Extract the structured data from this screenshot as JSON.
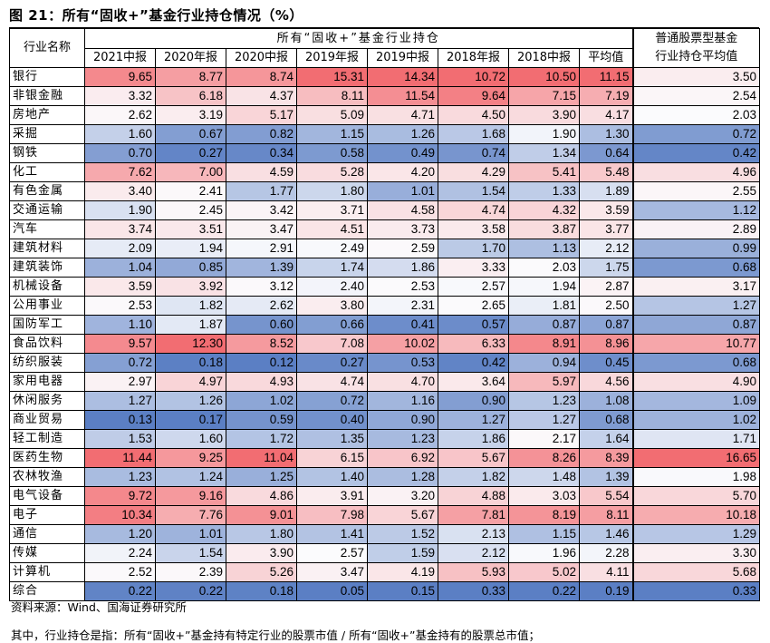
{
  "title": "图 21：所有“固收+”基金行业持仓情况（%）",
  "table": {
    "corner_header": "行业名称",
    "group_header": "所有“固收+”基金行业持仓",
    "right_header_line1": "普通股票型基金",
    "right_header_line2": "行业持仓平均值",
    "periods": [
      "2021中报",
      "2020年报",
      "2020中报",
      "2019年报",
      "2019中报",
      "2018年报",
      "2018中报",
      "平均值"
    ],
    "rows": [
      {
        "name": "银行",
        "values": [
          "9.65",
          "8.77",
          "8.74",
          "15.31",
          "14.34",
          "10.72",
          "10.50",
          "11.15"
        ],
        "stock": "3.50"
      },
      {
        "name": "非银金融",
        "values": [
          "3.32",
          "6.18",
          "4.37",
          "8.11",
          "11.54",
          "9.64",
          "7.15",
          "7.19"
        ],
        "stock": "2.54"
      },
      {
        "name": "房地产",
        "values": [
          "2.62",
          "3.19",
          "5.17",
          "5.09",
          "4.71",
          "4.50",
          "3.90",
          "4.17"
        ],
        "stock": "2.03"
      },
      {
        "name": "采掘",
        "values": [
          "1.60",
          "0.67",
          "0.82",
          "1.15",
          "1.26",
          "1.68",
          "1.90",
          "1.30"
        ],
        "stock": "0.72"
      },
      {
        "name": "钢铁",
        "values": [
          "0.70",
          "0.27",
          "0.34",
          "0.58",
          "0.49",
          "0.74",
          "1.34",
          "0.64"
        ],
        "stock": "0.42"
      },
      {
        "name": "化工",
        "values": [
          "7.62",
          "7.00",
          "4.59",
          "5.28",
          "4.20",
          "4.29",
          "5.41",
          "5.48"
        ],
        "stock": "4.96"
      },
      {
        "name": "有色金属",
        "values": [
          "3.40",
          "2.41",
          "1.77",
          "1.80",
          "1.01",
          "1.54",
          "1.33",
          "1.89"
        ],
        "stock": "2.55"
      },
      {
        "name": "交通运输",
        "values": [
          "1.90",
          "2.45",
          "3.42",
          "3.71",
          "4.58",
          "4.74",
          "4.32",
          "3.59"
        ],
        "stock": "1.12"
      },
      {
        "name": "汽车",
        "values": [
          "3.74",
          "3.51",
          "3.47",
          "4.51",
          "3.73",
          "3.58",
          "3.87",
          "3.77"
        ],
        "stock": "2.89"
      },
      {
        "name": "建筑材料",
        "values": [
          "2.09",
          "1.94",
          "2.91",
          "2.49",
          "2.59",
          "1.70",
          "1.13",
          "2.12"
        ],
        "stock": "0.99"
      },
      {
        "name": "建筑装饰",
        "values": [
          "1.04",
          "0.85",
          "1.39",
          "1.74",
          "1.86",
          "3.33",
          "2.03",
          "1.75"
        ],
        "stock": "0.68"
      },
      {
        "name": "机械设备",
        "values": [
          "3.59",
          "3.92",
          "3.12",
          "2.40",
          "2.53",
          "2.57",
          "1.94",
          "2.87"
        ],
        "stock": "3.17"
      },
      {
        "name": "公用事业",
        "values": [
          "2.53",
          "1.82",
          "2.62",
          "3.80",
          "2.31",
          "2.65",
          "1.81",
          "2.50"
        ],
        "stock": "1.27"
      },
      {
        "name": "国防军工",
        "values": [
          "1.10",
          "1.87",
          "0.60",
          "0.66",
          "0.41",
          "0.57",
          "0.87",
          "0.87"
        ],
        "stock": "0.87"
      },
      {
        "name": "食品饮料",
        "values": [
          "9.57",
          "12.30",
          "8.52",
          "7.08",
          "10.02",
          "6.33",
          "8.91",
          "8.96"
        ],
        "stock": "10.77"
      },
      {
        "name": "纺织服装",
        "values": [
          "0.72",
          "0.18",
          "0.12",
          "0.27",
          "0.53",
          "0.42",
          "0.94",
          "0.45"
        ],
        "stock": "0.68"
      },
      {
        "name": "家用电器",
        "values": [
          "2.97",
          "4.97",
          "4.93",
          "4.74",
          "4.70",
          "3.64",
          "5.97",
          "4.56"
        ],
        "stock": "4.90"
      },
      {
        "name": "休闲服务",
        "values": [
          "1.27",
          "1.26",
          "1.02",
          "0.72",
          "1.16",
          "0.90",
          "1.23",
          "1.08"
        ],
        "stock": "1.09"
      },
      {
        "name": "商业贸易",
        "values": [
          "0.13",
          "0.17",
          "0.59",
          "0.40",
          "0.90",
          "1.27",
          "1.27",
          "0.68"
        ],
        "stock": "1.02"
      },
      {
        "name": "轻工制造",
        "values": [
          "1.53",
          "1.60",
          "1.72",
          "1.35",
          "1.23",
          "1.86",
          "2.17",
          "1.64"
        ],
        "stock": "1.71"
      },
      {
        "name": "医药生物",
        "values": [
          "11.44",
          "9.25",
          "11.04",
          "6.15",
          "6.92",
          "5.67",
          "8.26",
          "8.39"
        ],
        "stock": "16.65"
      },
      {
        "name": "农林牧渔",
        "values": [
          "1.23",
          "1.24",
          "1.25",
          "1.40",
          "1.28",
          "1.82",
          "1.48",
          "1.39"
        ],
        "stock": "1.98"
      },
      {
        "name": "电气设备",
        "values": [
          "9.72",
          "9.16",
          "4.86",
          "3.91",
          "3.20",
          "4.88",
          "3.03",
          "5.54"
        ],
        "stock": "5.70"
      },
      {
        "name": "电子",
        "values": [
          "10.34",
          "7.76",
          "9.01",
          "7.98",
          "5.67",
          "7.81",
          "8.19",
          "8.11"
        ],
        "stock": "10.18"
      },
      {
        "name": "通信",
        "values": [
          "1.20",
          "1.01",
          "1.80",
          "1.41",
          "1.52",
          "2.13",
          "1.15",
          "1.46"
        ],
        "stock": "1.29"
      },
      {
        "name": "传媒",
        "values": [
          "2.24",
          "1.54",
          "3.90",
          "2.57",
          "1.59",
          "2.12",
          "1.96",
          "2.28"
        ],
        "stock": "3.30"
      },
      {
        "name": "计算机",
        "values": [
          "2.52",
          "2.39",
          "5.26",
          "3.47",
          "4.19",
          "5.93",
          "5.02",
          "4.11"
        ],
        "stock": "5.68"
      },
      {
        "name": "综合",
        "values": [
          "0.22",
          "0.22",
          "0.18",
          "0.05",
          "0.15",
          "0.33",
          "0.22",
          "0.19"
        ],
        "stock": "0.33"
      }
    ]
  },
  "heat_colors": {
    "low": "#5b7fc4",
    "mid": "#fbfbfd",
    "high": "#f26d72"
  },
  "source": "资料来源：Wind、国海证券研究所",
  "note": "其中，行业持仓是指：所有“固收+”基金持有特定行业的股票市值 / 所有“固收+”基金持有的股票总市值；"
}
